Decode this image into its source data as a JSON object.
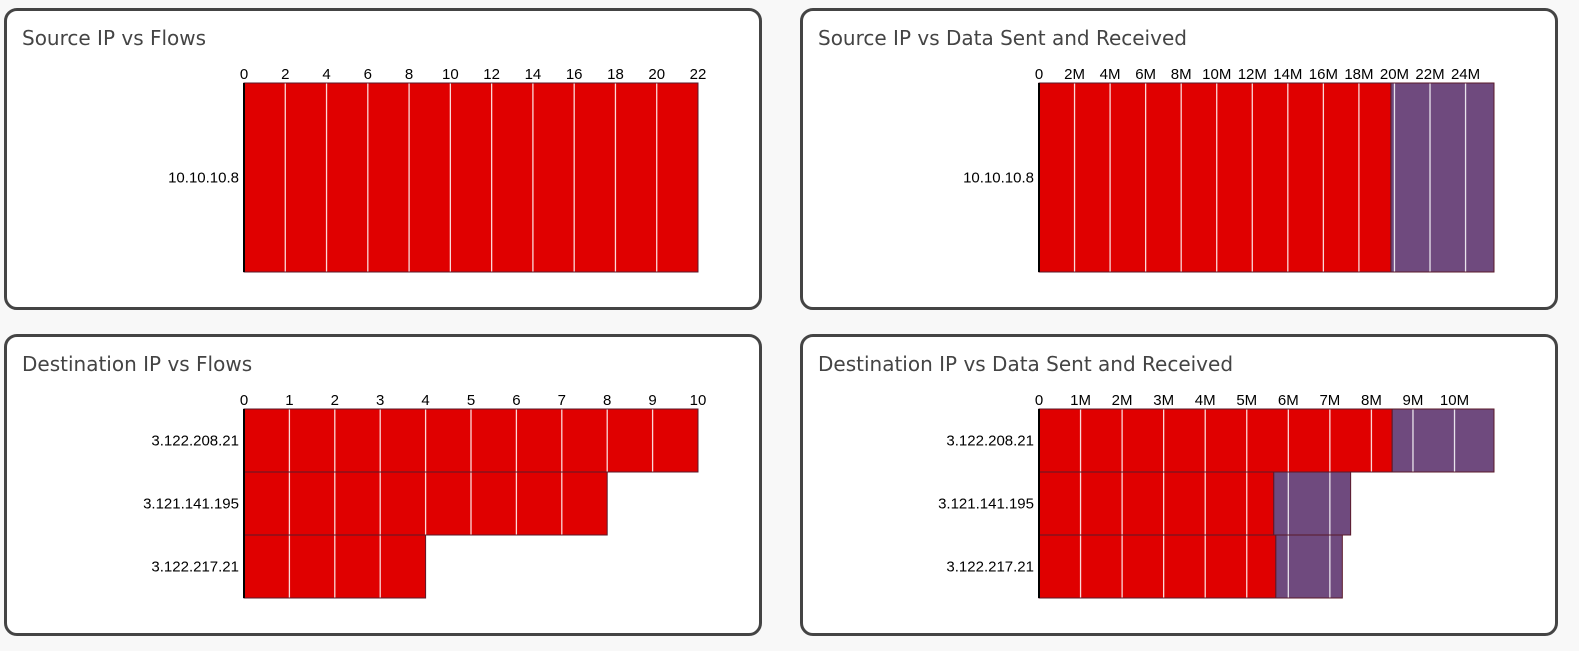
{
  "colors": {
    "sent": "#e00000",
    "received": "#6f4a7e",
    "axis": "#000000",
    "gridline": "#ffffff",
    "bar_border": "#5a1a2a"
  },
  "chart_data": [
    {
      "type": "bar",
      "orientation": "horizontal",
      "stacked": true,
      "title": "Source IP vs Flows",
      "categories": [
        "10.10.10.8"
      ],
      "series": [
        {
          "values": [
            22
          ],
          "color": "#e00000"
        }
      ],
      "xlim": [
        0,
        22
      ],
      "xticks": [
        0,
        2,
        4,
        6,
        8,
        10,
        12,
        14,
        16,
        18,
        20,
        22
      ],
      "xtick_labels": [
        "0",
        "2",
        "4",
        "6",
        "8",
        "10",
        "12",
        "14",
        "16",
        "18",
        "20",
        "22"
      ],
      "axis_position": "top",
      "grid": true
    },
    {
      "type": "bar",
      "orientation": "horizontal",
      "stacked": true,
      "title": "Source IP vs Data Sent and Received",
      "categories": [
        "10.10.10.8"
      ],
      "series": [
        {
          "values": [
            19800000
          ],
          "color": "#e00000"
        },
        {
          "values": [
            5800000
          ],
          "color": "#6f4a7e"
        }
      ],
      "xlim": [
        0,
        25600000
      ],
      "xticks": [
        0,
        2000000,
        4000000,
        6000000,
        8000000,
        10000000,
        12000000,
        14000000,
        16000000,
        18000000,
        20000000,
        22000000,
        24000000
      ],
      "xtick_labels": [
        "0",
        "2M",
        "4M",
        "6M",
        "8M",
        "10M",
        "12M",
        "14M",
        "16M",
        "18M",
        "20M",
        "22M",
        "24M"
      ],
      "axis_position": "top",
      "grid": true
    },
    {
      "type": "bar",
      "orientation": "horizontal",
      "stacked": true,
      "title": "Destination IP vs Flows",
      "categories": [
        "3.122.208.21",
        "3.121.141.195",
        "3.122.217.21"
      ],
      "series": [
        {
          "values": [
            10,
            8,
            4
          ],
          "color": "#e00000"
        }
      ],
      "xlim": [
        0,
        10
      ],
      "xticks": [
        0,
        1,
        2,
        3,
        4,
        5,
        6,
        7,
        8,
        9,
        10
      ],
      "xtick_labels": [
        "0",
        "1",
        "2",
        "3",
        "4",
        "5",
        "6",
        "7",
        "8",
        "9",
        "10"
      ],
      "axis_position": "top",
      "grid": true
    },
    {
      "type": "bar",
      "orientation": "horizontal",
      "stacked": true,
      "title": "Destination IP vs Data Sent and Received",
      "categories": [
        "3.122.208.21",
        "3.121.141.195",
        "3.122.217.21"
      ],
      "series": [
        {
          "values": [
            8500000,
            5650000,
            5700000
          ],
          "color": "#e00000"
        },
        {
          "values": [
            2450000,
            1850000,
            1600000
          ],
          "color": "#6f4a7e"
        }
      ],
      "xlim": [
        0,
        10950000
      ],
      "xticks": [
        0,
        1000000,
        2000000,
        3000000,
        4000000,
        5000000,
        6000000,
        7000000,
        8000000,
        9000000,
        10000000
      ],
      "xtick_labels": [
        "0",
        "1M",
        "2M",
        "3M",
        "4M",
        "5M",
        "6M",
        "7M",
        "8M",
        "9M",
        "10M"
      ],
      "axis_position": "top",
      "grid": true
    }
  ]
}
